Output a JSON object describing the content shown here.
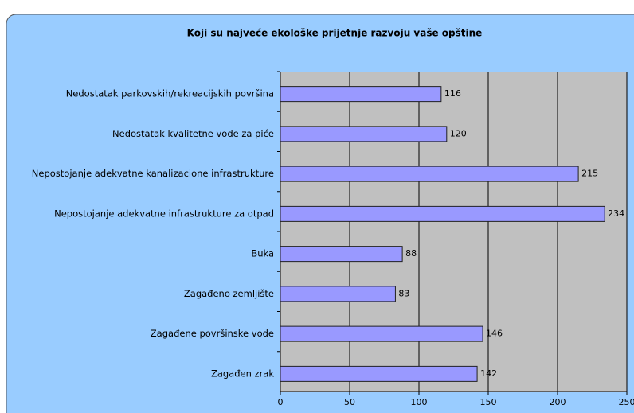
{
  "chart_data": {
    "type": "bar",
    "orientation": "horizontal",
    "title": "Koji su najveće ekološke prijetnje razvoju vaše opštine",
    "categories": [
      "Nedostatak parkovskih/rekreacijskih površina",
      "Nedostatak kvalitetne vode za piće",
      "Nepostojanje adekvatne kanalizacione infrastrukture",
      "Nepostojanje adekvatne infrastrukture za otpad",
      "Buka",
      "Zagađeno zemljište",
      "Zagađene površinske vode",
      "Zagađen zrak"
    ],
    "values": [
      116,
      120,
      215,
      234,
      88,
      83,
      146,
      142
    ],
    "color": "#9999ff",
    "xlim": [
      0,
      250
    ],
    "xticks": [
      0,
      50,
      100,
      150,
      200,
      250
    ],
    "grid": true
  }
}
